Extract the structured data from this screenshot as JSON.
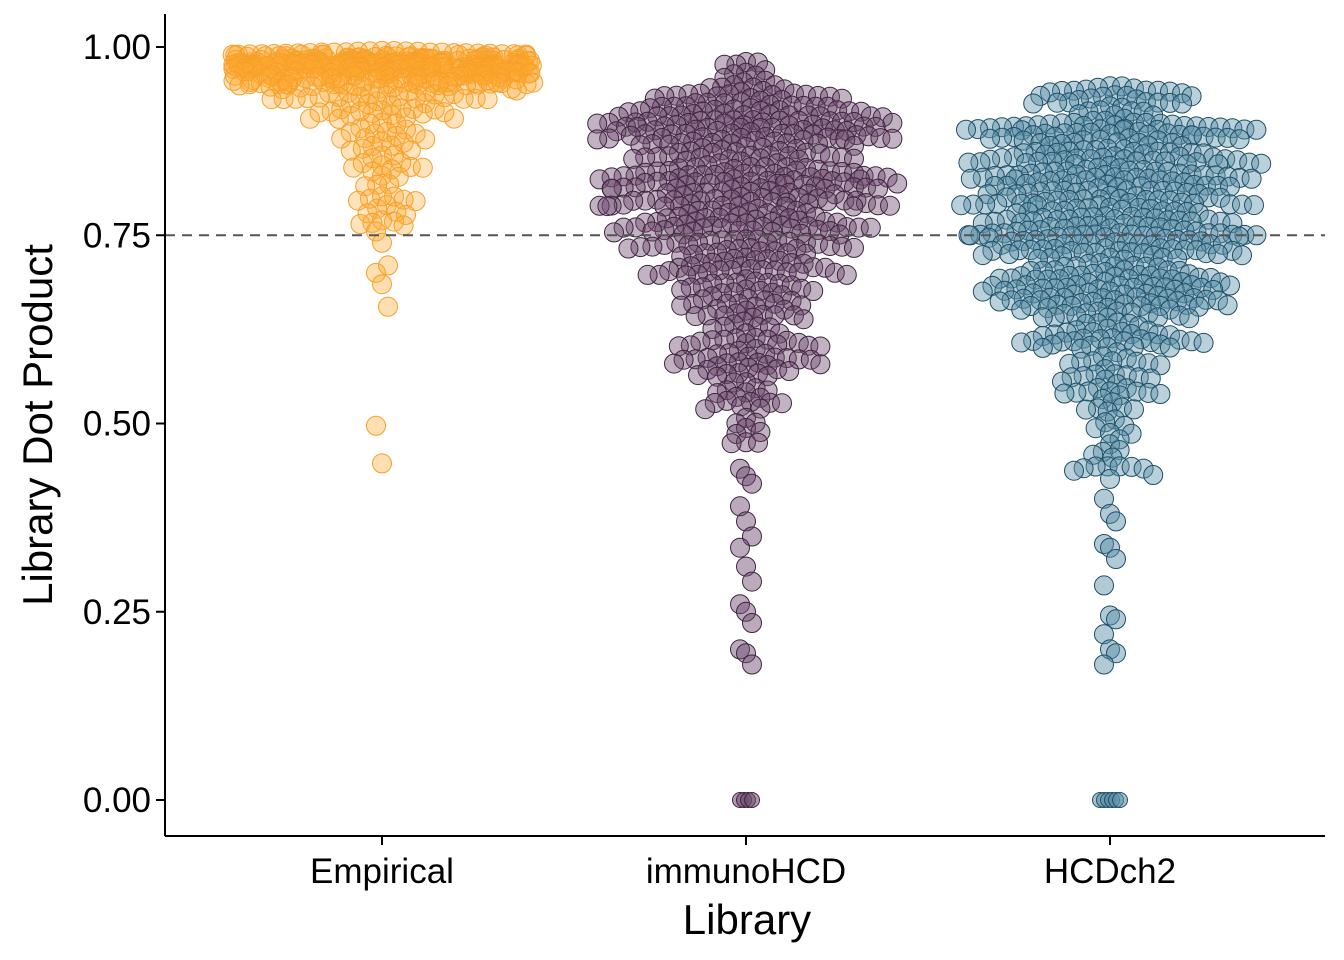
{
  "chart_data": {
    "type": "scatter",
    "subtype": "beeswarm",
    "title": "",
    "xlabel": "Library",
    "ylabel": "Library Dot Product",
    "categories": [
      "Empirical",
      "immunoHCD",
      "HCDch2"
    ],
    "ylim": [
      -0.05,
      1.045
    ],
    "y_ticks": [
      "0.00",
      "0.25",
      "0.50",
      "0.75",
      "1.00"
    ],
    "reference_line": {
      "y": 0.75,
      "style": "dashed",
      "color": "#555555"
    },
    "grid": false,
    "legend": "none",
    "series": [
      {
        "category": "Empirical",
        "color": "#FFA82E",
        "stroke": "#F5A02A",
        "shape": "wide-top-funnel",
        "count": 420,
        "main_range": [
          0.76,
          0.995
        ],
        "outliers": [
          0.755,
          0.74,
          0.71,
          0.7,
          0.685,
          0.655,
          0.497,
          0.447
        ]
      },
      {
        "category": "immunoHCD",
        "color": "#6D4A6E",
        "stroke": "#3E2540",
        "shape": "top-heavy-funnel",
        "count": 520,
        "main_range": [
          0.47,
          0.985
        ],
        "outliers": [
          0.44,
          0.43,
          0.42,
          0.39,
          0.37,
          0.35,
          0.335,
          0.31,
          0.29,
          0.26,
          0.25,
          0.235,
          0.2,
          0.195,
          0.18,
          0.0,
          0.0,
          0.0,
          0.0
        ]
      },
      {
        "category": "HCDch2",
        "color": "#5B8EA6",
        "stroke": "#1F4F68",
        "shape": "hexagonal-funnel",
        "count": 560,
        "main_range": [
          0.42,
          0.95
        ],
        "outliers": [
          0.4,
          0.38,
          0.37,
          0.34,
          0.335,
          0.32,
          0.285,
          0.245,
          0.24,
          0.22,
          0.2,
          0.195,
          0.18,
          0.0,
          0.0,
          0.0,
          0.0,
          0.0,
          0.0
        ]
      }
    ]
  }
}
